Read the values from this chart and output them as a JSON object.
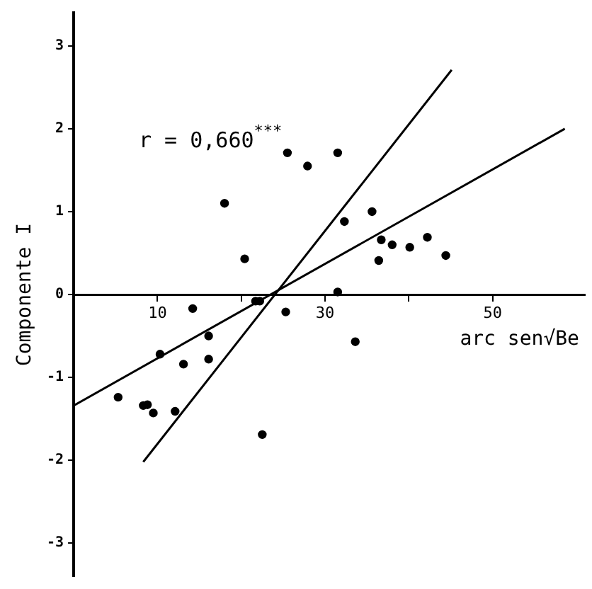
{
  "chart_data": {
    "type": "scatter",
    "xlabel": "arc sen√Be",
    "ylabel": "Componente I",
    "annotations": [
      {
        "text": "r = 0,660$^{***}$"
      }
    ],
    "xlim": [
      0,
      61
    ],
    "ylim": [
      -3.4,
      3.4
    ],
    "xticks": [
      10,
      {
        "value": 20,
        "label": null
      },
      30,
      {
        "value": 40,
        "label": null
      },
      50
    ],
    "yticks": [
      -3,
      -2,
      -1,
      0,
      1,
      2,
      3
    ],
    "grid": false,
    "legend": false,
    "marker": "circle",
    "series": [
      {
        "color": "#000000",
        "x": [
          5.3,
          8.3,
          8.8,
          9.5,
          12.1,
          10.3,
          13.1,
          16.1,
          16.1,
          14.2,
          20.4,
          18.0,
          22.5,
          21.7,
          22.2,
          25.3,
          25.5,
          27.9,
          31.5,
          32.3,
          35.6,
          36.7,
          38.0,
          40.1,
          42.2,
          44.4,
          36.4,
          31.5,
          33.6
        ],
        "values": [
          -1.24,
          -1.34,
          -1.33,
          -1.43,
          -1.41,
          -0.72,
          -0.84,
          -0.5,
          -0.78,
          -0.17,
          0.43,
          1.1,
          -1.69,
          -0.08,
          -0.08,
          -0.21,
          1.71,
          1.55,
          1.71,
          0.88,
          1.0,
          0.66,
          0.6,
          0.57,
          0.69,
          0.47,
          0.41,
          0.03,
          -0.57
        ]
      },
      {
        "type": "line",
        "marker": "none",
        "color": "#000000",
        "x": [
          8.3,
          45.1
        ],
        "values": [
          -2.02,
          2.71
        ]
      },
      {
        "type": "line",
        "marker": "none",
        "color": "#000000",
        "x": [
          0,
          58.6
        ],
        "values": [
          -1.34,
          2.0
        ]
      }
    ]
  }
}
